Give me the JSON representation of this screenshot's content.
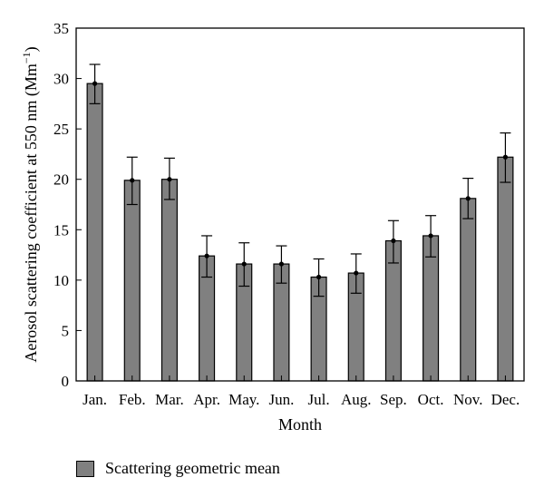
{
  "chart_data": {
    "type": "bar",
    "xlabel": "Month",
    "ylabel": "Aerosol scattering coefficient at 550 nm (Mm",
    "ylabel_sup": "−1",
    "ylabel_close": ")",
    "ylim": [
      0,
      35
    ],
    "yticks": [
      0,
      5,
      10,
      15,
      20,
      25,
      30,
      35
    ],
    "grid": false,
    "legend_position": "bottom-left",
    "categories": [
      "Jan.",
      "Feb.",
      "Mar.",
      "Apr.",
      "May.",
      "Jun.",
      "Jul.",
      "Aug.",
      "Sep.",
      "Oct.",
      "Nov.",
      "Dec."
    ],
    "series": [
      {
        "name": "Scattering geometric mean",
        "color": "#808080",
        "values": [
          29.5,
          19.9,
          20.0,
          12.4,
          11.6,
          11.6,
          10.3,
          10.7,
          13.9,
          14.4,
          18.1,
          22.2
        ],
        "error_low": [
          27.5,
          17.5,
          18.0,
          10.3,
          9.4,
          9.7,
          8.4,
          8.7,
          11.7,
          12.3,
          16.1,
          19.7
        ],
        "error_high": [
          31.4,
          22.2,
          22.1,
          14.4,
          13.7,
          13.4,
          12.1,
          12.6,
          15.9,
          16.4,
          20.1,
          24.6
        ]
      }
    ]
  }
}
